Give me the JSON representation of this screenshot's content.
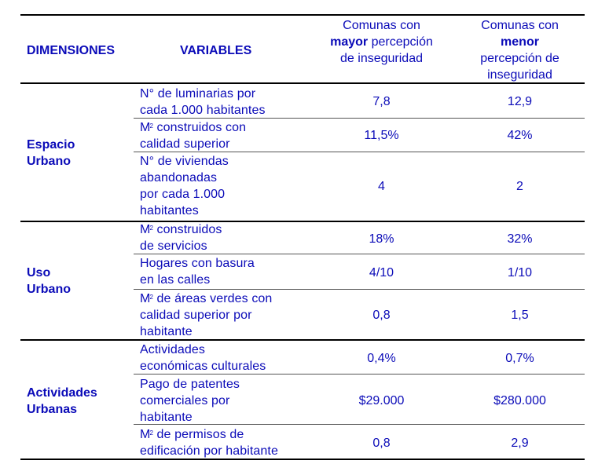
{
  "header": {
    "dimensiones": "DIMENSIONES",
    "variables": "VARIABLES",
    "col_mayor": {
      "pre": "Comunas con",
      "bold": "mayor",
      "post1": " percepción",
      "post2": "de inseguridad"
    },
    "col_menor": {
      "pre": "Comunas con",
      "bold": "menor",
      "post1": "percepción de",
      "post2": "inseguridad"
    }
  },
  "groups": [
    {
      "line1": "Espacio",
      "line2": "Urbano"
    },
    {
      "line1": "Uso",
      "line2": "Urbano"
    },
    {
      "line1": "Actividades",
      "line2": "Urbanas"
    }
  ],
  "rows": [
    {
      "variable": [
        "N° de luminarias por",
        "cada 1.000 habitantes"
      ],
      "mayor": "7,8",
      "menor": "12,9"
    },
    {
      "variable": [
        "M",
        "2",
        " construidos con",
        "calidad superior"
      ],
      "mayor": "11,5%",
      "menor": "42%"
    },
    {
      "variable": [
        "N° de viviendas",
        "abandonadas",
        "por cada 1.000",
        "habitantes"
      ],
      "mayor": "4",
      "menor": "2"
    },
    {
      "variable": [
        "M",
        "2",
        " construidos",
        "de servicios"
      ],
      "mayor": "18%",
      "menor": "32%"
    },
    {
      "variable": [
        "Hogares con basura",
        "en las calles"
      ],
      "mayor": "4/10",
      "menor": "1/10"
    },
    {
      "variable": [
        "M",
        "2",
        " de áreas verdes con",
        "calidad superior por",
        "habitante"
      ],
      "mayor": "0,8",
      "menor": "1,5"
    },
    {
      "variable": [
        "Actividades",
        "económicas culturales"
      ],
      "mayor": "0,4%",
      "menor": "0,7%"
    },
    {
      "variable": [
        "Pago de patentes",
        "comerciales por",
        "habitante"
      ],
      "mayor": "$29.000",
      "menor": "$280.000"
    },
    {
      "variable": [
        "M",
        "2",
        " de permisos de",
        "edificación por habitante"
      ],
      "mayor": "0,8",
      "menor": "2,9"
    }
  ]
}
